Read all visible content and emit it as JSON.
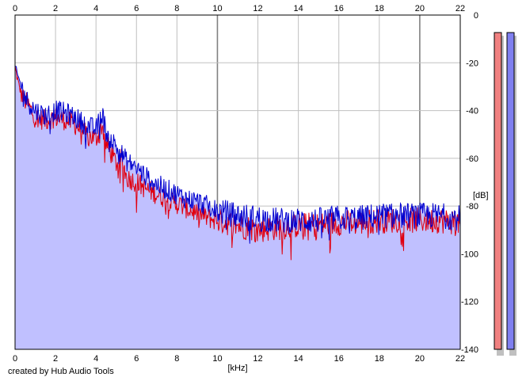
{
  "chart_data": {
    "type": "area",
    "xlabel": "[kHz]",
    "ylabel": "[dB]",
    "xlim": [
      0,
      22
    ],
    "ylim": [
      -140,
      0
    ],
    "x_ticks": [
      "0",
      "2",
      "4",
      "6",
      "8",
      "10",
      "12",
      "14",
      "16",
      "18",
      "20",
      "22"
    ],
    "y_ticks": [
      "0",
      "-20",
      "-40",
      "-60",
      "-80",
      "-100",
      "-120",
      "-140"
    ],
    "grid": true,
    "series": [
      {
        "color": "#e00010",
        "x": [
          0,
          0.2,
          0.4,
          0.6,
          0.8,
          1.0,
          1.5,
          2.0,
          2.5,
          3.0,
          3.5,
          4.0,
          4.3,
          4.5,
          5.0,
          5.3,
          5.5,
          6.0,
          6.5,
          7.0,
          7.5,
          8.0,
          8.5,
          9.0,
          9.5,
          10.0,
          11.0,
          12.0,
          13.0,
          14.0,
          15.0,
          16.0,
          17.0,
          18.0,
          19.0,
          20.0,
          21.0,
          22.0
        ],
        "y": [
          -22,
          -30,
          -35,
          -37,
          -40,
          -43,
          -44,
          -43,
          -44,
          -46,
          -50,
          -52,
          -46,
          -54,
          -62,
          -60,
          -68,
          -70,
          -73,
          -75,
          -77,
          -79,
          -81,
          -83,
          -85,
          -86,
          -88,
          -90,
          -89,
          -88,
          -88,
          -87,
          -87,
          -86,
          -86,
          -86,
          -86,
          -87
        ]
      },
      {
        "color": "#0000d0",
        "x": [
          0,
          0.2,
          0.4,
          0.6,
          0.8,
          1.0,
          1.5,
          2.0,
          2.5,
          3.0,
          3.5,
          4.0,
          4.3,
          4.5,
          5.0,
          5.5,
          6.0,
          6.5,
          7.0,
          7.5,
          8.0,
          8.5,
          9.0,
          9.5,
          10.0,
          11.0,
          12.0,
          13.0,
          14.0,
          15.0,
          16.0,
          17.0,
          18.0,
          19.0,
          20.0,
          21.0,
          22.0
        ],
        "y": [
          -22,
          -27,
          -32,
          -36,
          -38,
          -40,
          -42,
          -40,
          -41,
          -43,
          -46,
          -48,
          -41,
          -49,
          -55,
          -61,
          -64,
          -68,
          -71,
          -73,
          -75,
          -77,
          -78,
          -80,
          -82,
          -84,
          -85,
          -86,
          -86,
          -86,
          -85,
          -85,
          -84,
          -84,
          -84,
          -84,
          -85
        ]
      }
    ],
    "level_meters": [
      {
        "color": "#f08080",
        "value_db": -8
      },
      {
        "color": "#8080f0",
        "value_db": -8
      }
    ]
  },
  "credit": "created by Hub Audio Tools",
  "colors": {
    "fill": "#c0c0ff",
    "plot_background": "#ffffff",
    "grid": "#c0c0c0",
    "major_grid": "#808080"
  }
}
